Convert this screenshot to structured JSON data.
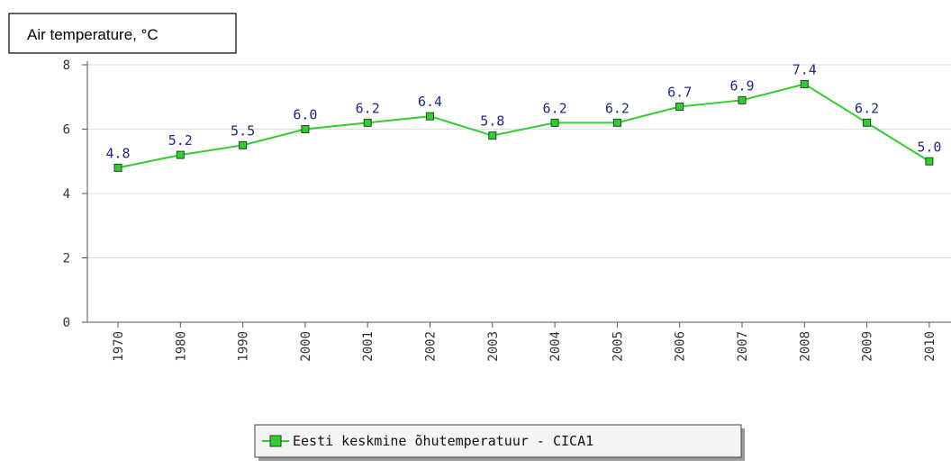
{
  "chart_data": {
    "type": "line",
    "title": "Air temperature, °C",
    "categories": [
      "1970",
      "1980",
      "1990",
      "2000",
      "2001",
      "2002",
      "2003",
      "2004",
      "2005",
      "2006",
      "2007",
      "2008",
      "2009",
      "2010"
    ],
    "series": [
      {
        "name": "Eesti keskmine õhutemperatuur - CICA1",
        "color": "#33cc33",
        "values": [
          4.8,
          5.2,
          5.5,
          6.0,
          6.2,
          6.4,
          5.8,
          6.2,
          6.2,
          6.7,
          6.9,
          7.4,
          6.2,
          5.0
        ],
        "value_labels": [
          "4.8",
          "5.2",
          "5.5",
          "6.0",
          "6.2",
          "6.4",
          "5.8",
          "6.2",
          "6.2",
          "6.7",
          "6.9",
          "7.4",
          "6.2",
          "5.0"
        ]
      }
    ],
    "ylim": [
      0,
      8
    ],
    "yticks": [
      0,
      2,
      4,
      6,
      8
    ],
    "grid": true,
    "legend": "bottom"
  }
}
